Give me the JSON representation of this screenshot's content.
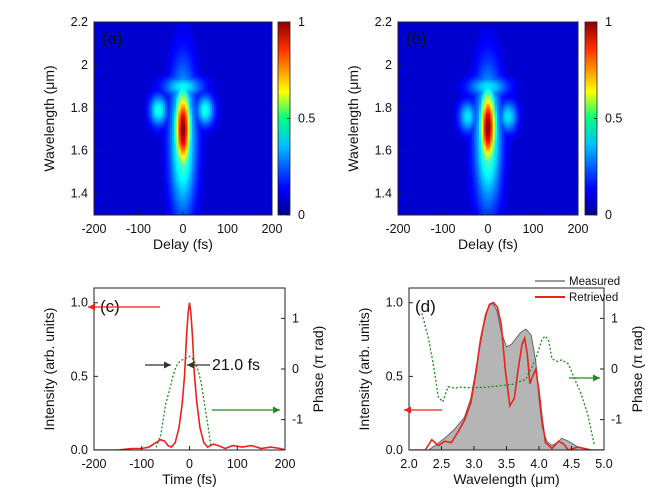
{
  "chart_data": [
    {
      "panel": "(a)",
      "type": "heatmap",
      "xlabel": "Delay (fs)",
      "ylabel": "Wavelength (μm)",
      "xlim": [
        -200,
        200
      ],
      "ylim": [
        1.3,
        2.2
      ],
      "xticks": [
        "-200",
        "-100",
        "0",
        "100",
        "200"
      ],
      "yticks": [
        "1.4",
        "1.6",
        "1.8",
        "2",
        "2.2"
      ],
      "colorbar": {
        "range": [
          0,
          1
        ],
        "ticks": [
          "0",
          "0.5",
          "1"
        ]
      },
      "features": {
        "peak": {
          "delay": 0,
          "wavelength": 1.7,
          "value": 1.0
        },
        "main_width_fs": 22,
        "spectral_half_span_um": 0.18,
        "side_lobes": [
          {
            "delay": -55,
            "wavelength": 1.79,
            "value": 0.35
          },
          {
            "delay": 50,
            "wavelength": 1.79,
            "value": 0.35
          }
        ],
        "top_cap": {
          "delay": 0,
          "wavelength": 1.9,
          "value": 0.32
        }
      }
    },
    {
      "panel": "(b)",
      "type": "heatmap",
      "xlabel": "Delay (fs)",
      "ylabel": "Wavelength (μm)",
      "xlim": [
        -200,
        200
      ],
      "ylim": [
        1.3,
        2.2
      ],
      "xticks": [
        "-200",
        "-100",
        "0",
        "100",
        "200"
      ],
      "yticks": [
        "1.4",
        "1.6",
        "1.8",
        "2",
        "2.2"
      ],
      "colorbar": {
        "range": [
          0,
          1
        ],
        "ticks": [
          "0",
          "0.5",
          "1"
        ]
      },
      "features": {
        "peak": {
          "delay": 0,
          "wavelength": 1.71,
          "value": 1.0
        },
        "main_width_fs": 22,
        "spectral_half_span_um": 0.17,
        "side_lobes": [
          {
            "delay": -45,
            "wavelength": 1.76,
            "value": 0.3
          },
          {
            "delay": 45,
            "wavelength": 1.76,
            "value": 0.3
          }
        ],
        "top_cap": {
          "delay": 0,
          "wavelength": 1.9,
          "value": 0.3
        }
      }
    },
    {
      "panel": "(c)",
      "type": "line",
      "xlabel": "Time (fs)",
      "ylabel": "Intensity (arb. units)",
      "y2label": "Phase (π rad)",
      "xlim": [
        -200,
        200
      ],
      "ylim": [
        0,
        1.1
      ],
      "y2lim": [
        -1.6,
        1.6
      ],
      "xticks": [
        "-200",
        "-100",
        "0",
        "100",
        "200"
      ],
      "yticks": [
        "0.0",
        "0.5",
        "1.0"
      ],
      "y2ticks": [
        "-1",
        "0",
        "1"
      ],
      "annotation": "21.0 fs",
      "series": [
        {
          "axis": "left",
          "color": "#e8231c",
          "style": "solid",
          "x": [
            -200,
            -150,
            -120,
            -100,
            -85,
            -70,
            -60,
            -52,
            -45,
            -38,
            -30,
            -22,
            -15,
            -10,
            -6,
            -3,
            0,
            3,
            6,
            10,
            15,
            22,
            30,
            38,
            50,
            60,
            75,
            90,
            110,
            130,
            150,
            170,
            190,
            200
          ],
          "y": [
            0.0,
            0.0,
            0.01,
            0.01,
            0.02,
            0.05,
            0.07,
            0.06,
            0.03,
            0.02,
            0.05,
            0.15,
            0.32,
            0.52,
            0.78,
            0.93,
            1.0,
            0.93,
            0.78,
            0.52,
            0.33,
            0.15,
            0.05,
            0.02,
            0.04,
            0.03,
            0.01,
            0.03,
            0.02,
            0.03,
            0.01,
            0.02,
            0.01,
            0.0
          ]
        },
        {
          "axis": "right",
          "color": "#1f8a1f",
          "style": "dotted",
          "x": [
            -70,
            -60,
            -50,
            -40,
            -35,
            -30,
            -25,
            -20,
            -15,
            -10,
            -5,
            0,
            5,
            10,
            15,
            20,
            25,
            30,
            35,
            40,
            45
          ],
          "y": [
            -1.55,
            -1.3,
            -0.7,
            -0.35,
            -0.15,
            0.0,
            0.1,
            0.15,
            0.18,
            0.2,
            0.22,
            0.25,
            0.22,
            0.15,
            0.05,
            -0.1,
            -0.3,
            -0.6,
            -0.9,
            -1.2,
            -1.55
          ]
        }
      ]
    },
    {
      "panel": "(d)",
      "type": "line",
      "xlabel": "Wavelength (μm)",
      "ylabel": "Intensity (arb. units)",
      "y2label": "Phase (π rad)",
      "xlim": [
        2.0,
        5.0
      ],
      "ylim": [
        0,
        1.1
      ],
      "y2lim": [
        -1.6,
        1.6
      ],
      "xticks": [
        "2.0",
        "2.5",
        "3.0",
        "3.5",
        "4.0",
        "4.5",
        "5.0"
      ],
      "yticks": [
        "0.0",
        "0.5",
        "1.0"
      ],
      "y2ticks": [
        "-1",
        "0",
        "1"
      ],
      "legend": {
        "position": "top-right",
        "entries": [
          "Measured",
          "Retrieved"
        ]
      },
      "series": [
        {
          "name": "Measured",
          "axis": "left",
          "color": "#9a9a9a",
          "style": "area",
          "x": [
            2.0,
            2.3,
            2.4,
            2.55,
            2.7,
            2.85,
            2.95,
            3.05,
            3.15,
            3.22,
            3.28,
            3.35,
            3.42,
            3.5,
            3.58,
            3.65,
            3.72,
            3.8,
            3.88,
            3.95,
            4.0,
            4.05,
            4.12,
            4.2,
            4.28,
            4.35,
            4.45,
            4.6,
            4.8,
            5.0
          ],
          "y": [
            0.0,
            0.0,
            0.03,
            0.08,
            0.14,
            0.22,
            0.35,
            0.6,
            0.85,
            0.97,
            1.0,
            0.95,
            0.8,
            0.7,
            0.72,
            0.76,
            0.8,
            0.82,
            0.78,
            0.6,
            0.35,
            0.15,
            0.06,
            0.03,
            0.05,
            0.08,
            0.06,
            0.02,
            0.0,
            0.0
          ]
        },
        {
          "name": "Retrieved",
          "axis": "left",
          "color": "#e8231c",
          "style": "solid",
          "x": [
            2.0,
            2.25,
            2.35,
            2.45,
            2.55,
            2.65,
            2.75,
            2.85,
            2.95,
            3.02,
            3.1,
            3.18,
            3.24,
            3.3,
            3.36,
            3.42,
            3.48,
            3.55,
            3.62,
            3.68,
            3.74,
            3.78,
            3.82,
            3.86,
            3.9,
            3.95,
            4.0,
            4.05,
            4.1,
            4.2,
            4.3,
            4.38,
            4.45,
            4.6,
            4.8,
            5.0
          ],
          "y": [
            0.0,
            0.0,
            0.07,
            0.03,
            0.06,
            0.05,
            0.12,
            0.2,
            0.32,
            0.5,
            0.75,
            0.92,
            0.99,
            1.0,
            0.97,
            0.85,
            0.55,
            0.3,
            0.35,
            0.55,
            0.72,
            0.76,
            0.65,
            0.45,
            0.5,
            0.55,
            0.4,
            0.2,
            0.05,
            0.01,
            0.06,
            0.04,
            0.0,
            0.02,
            0.0,
            0.0
          ]
        },
        {
          "axis": "right",
          "color": "#1f8a1f",
          "style": "dotted",
          "x": [
            2.2,
            2.3,
            2.38,
            2.45,
            2.52,
            2.6,
            2.7,
            2.8,
            2.9,
            3.0,
            3.2,
            3.4,
            3.6,
            3.8,
            3.95,
            4.05,
            4.1,
            4.15,
            4.2,
            4.28,
            4.35,
            4.45,
            4.55,
            4.65,
            4.75,
            4.85
          ],
          "y": [
            1.1,
            0.6,
            0.05,
            -0.55,
            -0.65,
            -0.35,
            -0.38,
            -0.36,
            -0.37,
            -0.37,
            -0.36,
            -0.33,
            -0.3,
            -0.2,
            0.2,
            0.6,
            0.65,
            0.55,
            0.2,
            0.15,
            0.18,
            0.1,
            -0.2,
            -0.5,
            -0.9,
            -1.5
          ]
        }
      ]
    }
  ]
}
